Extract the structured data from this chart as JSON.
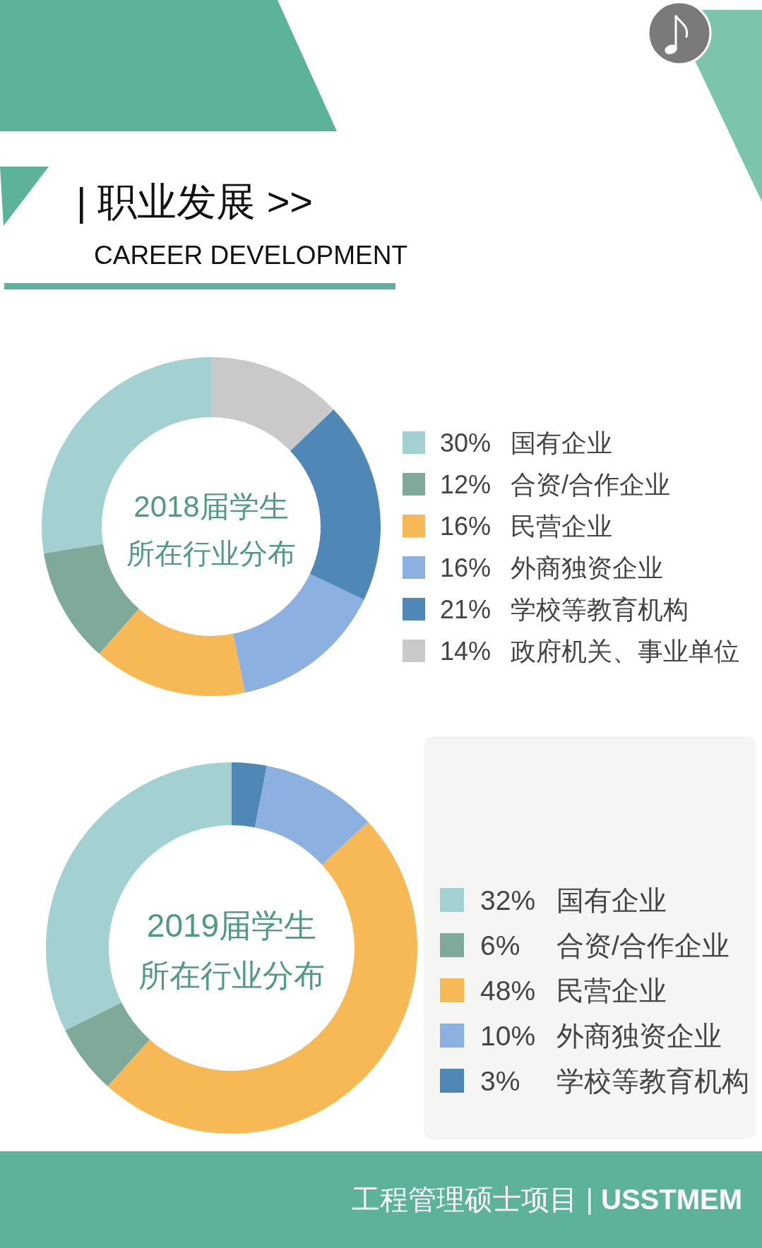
{
  "chart_data": [
    {
      "type": "donut",
      "title": "2018届学生",
      "subtitle": "所在行业分布",
      "categories": [
        "30% 国有企业",
        "12% 合资/合作企业",
        "16% 民营企业",
        "16% 外商独资企业",
        "21% 学校等教育机构",
        "14% 政府机关、事业单位"
      ],
      "values": [
        30,
        12,
        16,
        16,
        21,
        14
      ],
      "colors": [
        "#a3d1d1",
        "#7faa9a",
        "#f6b955",
        "#8cb1e0",
        "#4f87b6",
        "#c9c9c9"
      ],
      "legend": "right",
      "annotations": [
        "| 职业发展 >>",
        "CAREER DEVELOPMENT"
      ]
    },
    {
      "type": "donut",
      "title": "2019届学生",
      "subtitle": "所在行业分布",
      "categories": [
        "32% 国有企业",
        "6% 合资/合作企业",
        "48% 民营企业",
        "10% 外商独资企业",
        "3% 学校等教育机构"
      ],
      "values": [
        32,
        6,
        48,
        10,
        3
      ],
      "colors": [
        "#a3d1d1",
        "#7faa9a",
        "#f6b955",
        "#8cb1e0",
        "#4f87b6"
      ],
      "legend": "right",
      "annotations": [
        "工程管理硕士项目 | **USSTMEM**"
      ]
    }
  ]
}
